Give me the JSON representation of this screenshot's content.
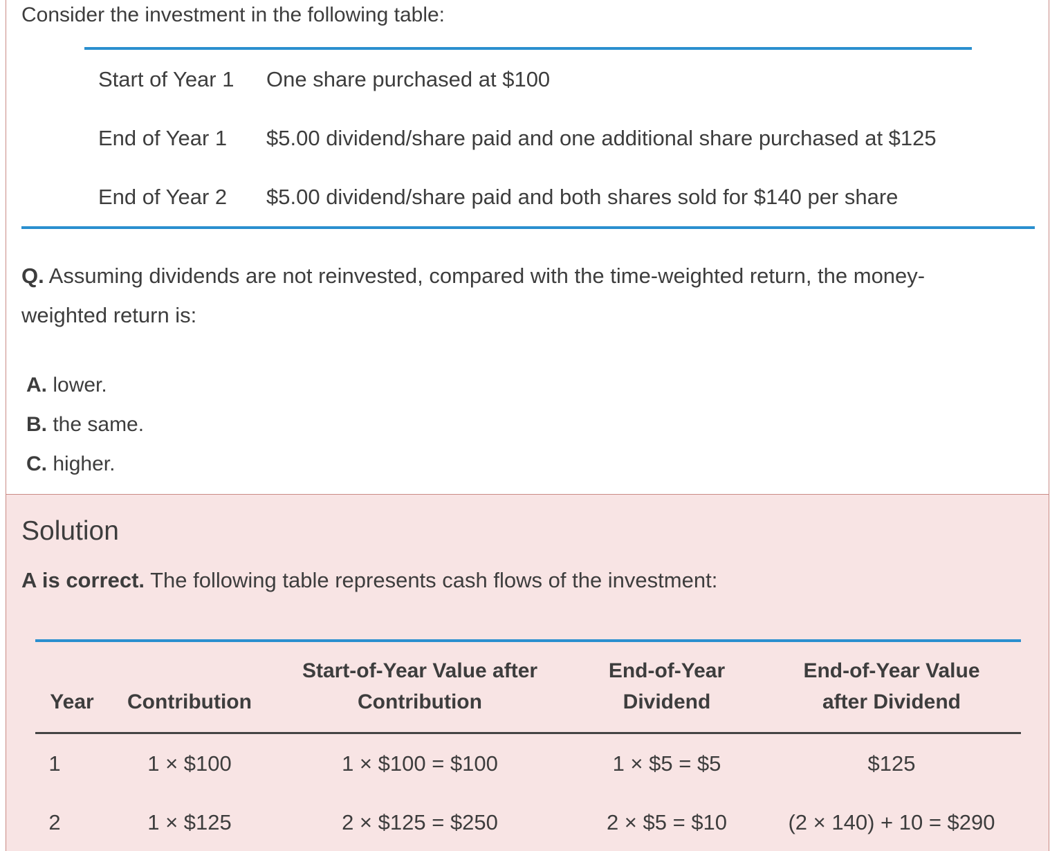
{
  "question": {
    "intro": "Consider the investment in the following table:",
    "schedule": [
      {
        "when": "Start of Year 1",
        "what": "One share purchased at $100"
      },
      {
        "when": "End of Year 1",
        "what": "$5.00 dividend/share paid and one additional share purchased at $125"
      },
      {
        "when": "End of Year 2",
        "what": "$5.00 dividend/share paid and both shares sold for $140 per share"
      }
    ],
    "label": "Q.",
    "text": "Assuming dividends are not reinvested, compared with the time-weighted return, the money-weighted return is:",
    "options": [
      {
        "letter": "A.",
        "text": "lower."
      },
      {
        "letter": "B.",
        "text": "the same."
      },
      {
        "letter": "C.",
        "text": "higher."
      }
    ]
  },
  "solution": {
    "title": "Solution",
    "correct": "A is correct.",
    "lead": "The following table represents cash flows of the investment:",
    "headers": [
      "Year",
      "Contribution",
      "Start-of-Year Value after Contribution",
      "End-of-Year Dividend",
      "End-of-Year Value after Dividend"
    ],
    "rows": [
      [
        "1",
        "1 × $100",
        "1 × $100 = $100",
        "1 × $5 = $5",
        "$125"
      ],
      [
        "2",
        "1 × $125",
        "2 × $125 = $250",
        "2 × $5 = $10",
        "(2 × 140) + 10 = $290"
      ]
    ]
  },
  "colors": {
    "rule_blue": "#2a8fcf",
    "solution_background": "#f8e4e4",
    "border": "#c98a84",
    "text": "#3d3d3d"
  }
}
